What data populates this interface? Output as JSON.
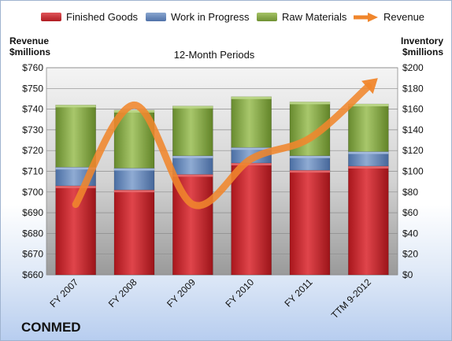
{
  "company": "CONMED",
  "chart_data": {
    "type": "bar",
    "title": "12-Month Periods",
    "categories": [
      "FY 2007",
      "FY 2008",
      "FY 2009",
      "FY 2010",
      "FY 2011",
      "TTM 9-2012"
    ],
    "left_axis": {
      "label_line1": "Revenue",
      "label_line2": "$millions",
      "ylim": [
        660,
        760
      ],
      "ticks": [
        "$660",
        "$670",
        "$680",
        "$690",
        "$700",
        "$710",
        "$720",
        "$730",
        "$740",
        "$750",
        "$760"
      ]
    },
    "right_axis": {
      "label_line1": "Inventory",
      "label_line2": "$millions",
      "ylim": [
        0,
        200
      ],
      "ticks": [
        "$0",
        "$20",
        "$40",
        "$60",
        "$80",
        "$100",
        "$120",
        "$140",
        "$160",
        "$180",
        "$200"
      ]
    },
    "stacked_series": [
      {
        "name": "Finished Goods",
        "axis": "right",
        "values": [
          86,
          82,
          97,
          108,
          101,
          105
        ]
      },
      {
        "name": "Work in Progress",
        "axis": "right",
        "values": [
          18,
          21,
          18,
          15,
          14,
          14
        ]
      },
      {
        "name": "Raw Materials",
        "axis": "right",
        "values": [
          60,
          56,
          48,
          49,
          52,
          46
        ]
      }
    ],
    "line_series": {
      "name": "Revenue",
      "axis": "left",
      "values": [
        694,
        742,
        694,
        716,
        726,
        751
      ]
    },
    "grid": true,
    "legend_position": "top"
  },
  "colors": {
    "finished_goods": "#c0242a",
    "work_in_progress": "#5b7fb5",
    "raw_materials": "#7ea03e",
    "revenue": "#f0862c",
    "plot_bg_top": "#f2f2f2",
    "plot_bg_bottom": "#9a9a9a"
  }
}
